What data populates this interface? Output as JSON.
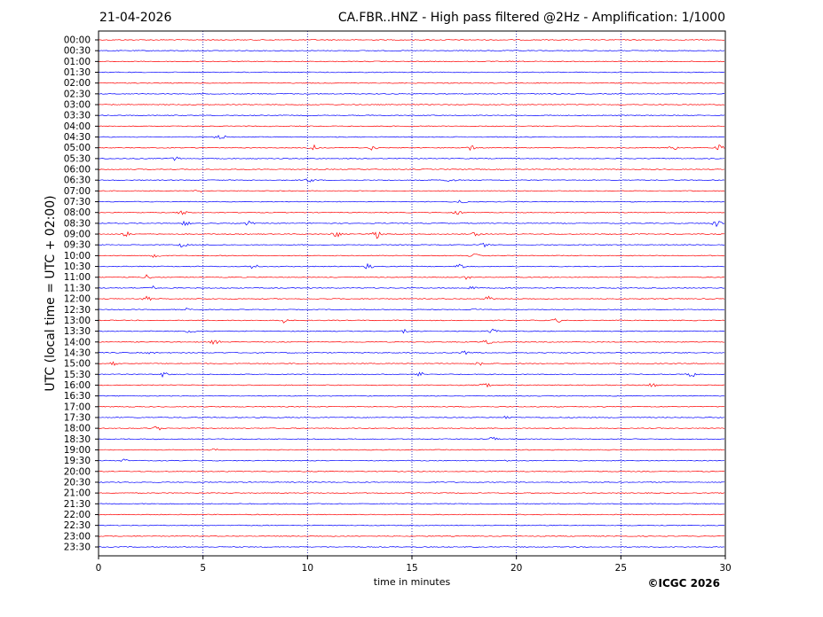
{
  "header": {
    "date": "21-04-2026",
    "title": "CA.FBR..HNZ - High pass filtered @2Hz - Amplification: 1/1000"
  },
  "footer": {
    "copyright": "©ICGC 2026"
  },
  "colors": {
    "trace_a": "#ff0000",
    "trace_b": "#0000ff",
    "grid": "#0000aa",
    "frame": "#000000"
  },
  "chart_data": {
    "type": "line",
    "title": "CA.FBR..HNZ - High pass filtered @2Hz - Amplification: 1/1000",
    "xlabel": "time in minutes",
    "ylabel": "UTC (local time = UTC + 02:00)",
    "xlim": [
      0,
      30
    ],
    "xticks": [
      "0",
      "5",
      "10",
      "15",
      "20",
      "25",
      "30"
    ],
    "grid": "vertical dotted at every 5 minutes",
    "rows": [
      "00:00",
      "00:30",
      "01:00",
      "01:30",
      "02:00",
      "02:30",
      "03:00",
      "03:30",
      "04:00",
      "04:30",
      "05:00",
      "05:30",
      "06:00",
      "06:30",
      "07:00",
      "07:30",
      "08:00",
      "08:30",
      "09:00",
      "09:30",
      "10:00",
      "10:30",
      "11:00",
      "11:30",
      "12:00",
      "12:30",
      "13:00",
      "13:30",
      "14:00",
      "14:30",
      "15:00",
      "15:30",
      "16:00",
      "16:30",
      "17:00",
      "17:30",
      "18:00",
      "18:30",
      "19:00",
      "19:30",
      "20:00",
      "20:30",
      "21:00",
      "21:30",
      "22:00",
      "22:30",
      "23:00",
      "23:30"
    ],
    "row_colors": [
      "red",
      "blue"
    ],
    "events": [
      {
        "row": "04:30",
        "minute": 5.8,
        "amp": 4
      },
      {
        "row": "05:00",
        "minute": 10.3,
        "amp": 3
      },
      {
        "row": "05:00",
        "minute": 13.1,
        "amp": 4
      },
      {
        "row": "05:00",
        "minute": 17.8,
        "amp": 3
      },
      {
        "row": "05:00",
        "minute": 27.5,
        "amp": 3
      },
      {
        "row": "05:00",
        "minute": 29.8,
        "amp": 5
      },
      {
        "row": "05:30",
        "minute": 3.7,
        "amp": 3
      },
      {
        "row": "06:30",
        "minute": 10.1,
        "amp": 3
      },
      {
        "row": "06:30",
        "minute": 16.8,
        "amp": 3
      },
      {
        "row": "07:00",
        "minute": 4.8,
        "amp": 2
      },
      {
        "row": "07:30",
        "minute": 17.4,
        "amp": 3
      },
      {
        "row": "08:00",
        "minute": 4.0,
        "amp": 3
      },
      {
        "row": "08:00",
        "minute": 17.2,
        "amp": 3
      },
      {
        "row": "08:30",
        "minute": 4.2,
        "amp": 3
      },
      {
        "row": "08:30",
        "minute": 7.2,
        "amp": 3
      },
      {
        "row": "08:30",
        "minute": 29.6,
        "amp": 4
      },
      {
        "row": "09:00",
        "minute": 1.3,
        "amp": 3
      },
      {
        "row": "09:00",
        "minute": 11.4,
        "amp": 4
      },
      {
        "row": "09:00",
        "minute": 13.3,
        "amp": 5
      },
      {
        "row": "09:00",
        "minute": 18.0,
        "amp": 3
      },
      {
        "row": "09:30",
        "minute": 4.0,
        "amp": 3
      },
      {
        "row": "09:30",
        "minute": 18.5,
        "amp": 3
      },
      {
        "row": "10:00",
        "minute": 2.7,
        "amp": 3
      },
      {
        "row": "10:00",
        "minute": 18.0,
        "amp": 3
      },
      {
        "row": "10:30",
        "minute": 7.4,
        "amp": 3
      },
      {
        "row": "10:30",
        "minute": 12.9,
        "amp": 3
      },
      {
        "row": "10:30",
        "minute": 17.3,
        "amp": 4
      },
      {
        "row": "11:00",
        "minute": 2.3,
        "amp": 3
      },
      {
        "row": "11:00",
        "minute": 17.6,
        "amp": 3
      },
      {
        "row": "11:30",
        "minute": 2.5,
        "amp": 3
      },
      {
        "row": "11:30",
        "minute": 17.9,
        "amp": 3
      },
      {
        "row": "12:00",
        "minute": 2.3,
        "amp": 3
      },
      {
        "row": "12:00",
        "minute": 18.7,
        "amp": 3
      },
      {
        "row": "12:30",
        "minute": 4.3,
        "amp": 3
      },
      {
        "row": "12:30",
        "minute": 18.1,
        "amp": 3
      },
      {
        "row": "13:00",
        "minute": 8.9,
        "amp": 3
      },
      {
        "row": "13:00",
        "minute": 21.9,
        "amp": 3
      },
      {
        "row": "13:30",
        "minute": 4.4,
        "amp": 3
      },
      {
        "row": "13:30",
        "minute": 14.7,
        "amp": 3
      },
      {
        "row": "13:30",
        "minute": 18.9,
        "amp": 3
      },
      {
        "row": "14:00",
        "minute": 5.6,
        "amp": 3
      },
      {
        "row": "14:00",
        "minute": 18.6,
        "amp": 3
      },
      {
        "row": "14:30",
        "minute": 2.6,
        "amp": 3
      },
      {
        "row": "14:30",
        "minute": 17.5,
        "amp": 3
      },
      {
        "row": "15:00",
        "minute": 0.7,
        "amp": 3
      },
      {
        "row": "15:00",
        "minute": 18.2,
        "amp": 3
      },
      {
        "row": "15:30",
        "minute": 3.1,
        "amp": 3
      },
      {
        "row": "15:30",
        "minute": 15.4,
        "amp": 3
      },
      {
        "row": "15:30",
        "minute": 28.4,
        "amp": 3
      },
      {
        "row": "16:00",
        "minute": 18.5,
        "amp": 3
      },
      {
        "row": "16:00",
        "minute": 26.5,
        "amp": 3
      },
      {
        "row": "17:30",
        "minute": 19.5,
        "amp": 2
      },
      {
        "row": "18:00",
        "minute": 2.8,
        "amp": 4
      },
      {
        "row": "18:30",
        "minute": 18.9,
        "amp": 3
      },
      {
        "row": "19:00",
        "minute": 5.5,
        "amp": 2
      },
      {
        "row": "19:30",
        "minute": 19.4,
        "amp": 3
      },
      {
        "row": "19:30",
        "minute": 1.2,
        "amp": 2
      }
    ]
  }
}
